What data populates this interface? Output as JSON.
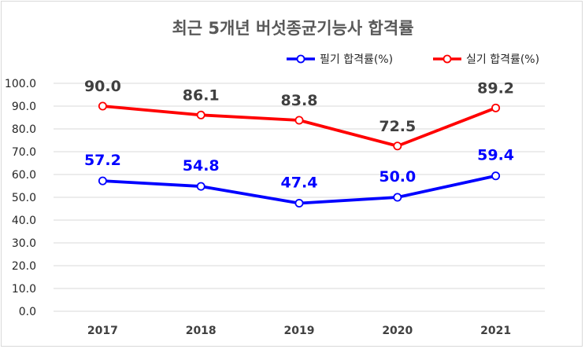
{
  "chart_data": {
    "type": "line",
    "title": "최근 5개년 버섯종균기능사 합격률",
    "categories": [
      "2017",
      "2018",
      "2019",
      "2020",
      "2021"
    ],
    "ylim": [
      0,
      100
    ],
    "yticks": [
      "100.0",
      "90.0",
      "80.0",
      "70.0",
      "60.0",
      "50.0",
      "40.0",
      "30.0",
      "20.0",
      "10.0",
      "0.0"
    ],
    "ytick_values": [
      100,
      90,
      80,
      70,
      60,
      50,
      40,
      30,
      20,
      10,
      0
    ],
    "grid": true,
    "legend_position": "top-right",
    "series": [
      {
        "name": "필기 합격률(%)",
        "color": "#0000ff",
        "values": [
          57.2,
          54.8,
          47.4,
          50.0,
          59.4
        ],
        "labels": [
          "57.2",
          "54.8",
          "47.4",
          "50.0",
          "59.4"
        ]
      },
      {
        "name": "실기 합격률(%)",
        "color": "#ff0000",
        "values": [
          90.0,
          86.1,
          83.8,
          72.5,
          89.2
        ],
        "labels": [
          "90.0",
          "86.1",
          "83.8",
          "72.5",
          "89.2"
        ]
      }
    ]
  }
}
